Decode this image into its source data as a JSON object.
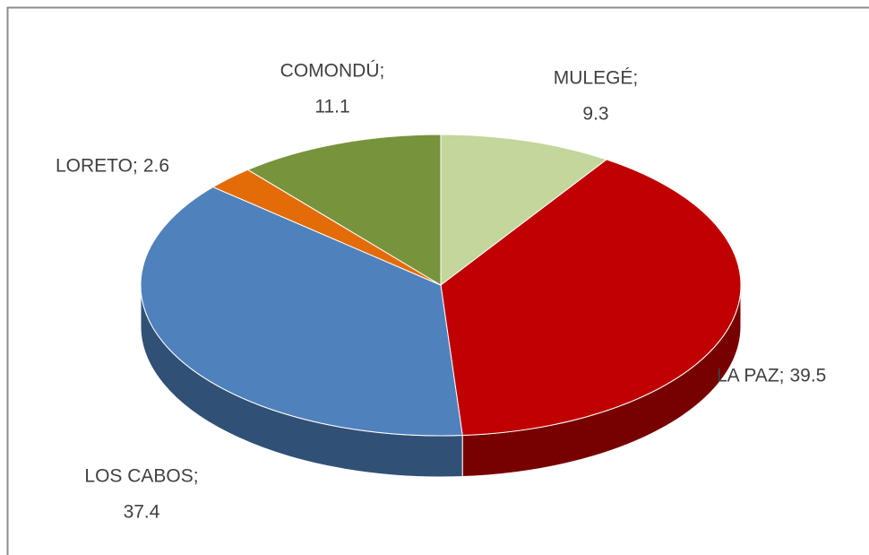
{
  "chart_data": {
    "type": "pie3d",
    "categories": [
      "MULEGÉ;",
      "LA PAZ;",
      "LOS CABOS;",
      "LORETO;",
      "COMONDÚ;"
    ],
    "values": [
      9.3,
      39.5,
      37.4,
      2.6,
      11.1
    ],
    "colors": [
      "#c3d69b",
      "#c00000",
      "#4f81bd",
      "#e36c09",
      "#77933c"
    ]
  }
}
